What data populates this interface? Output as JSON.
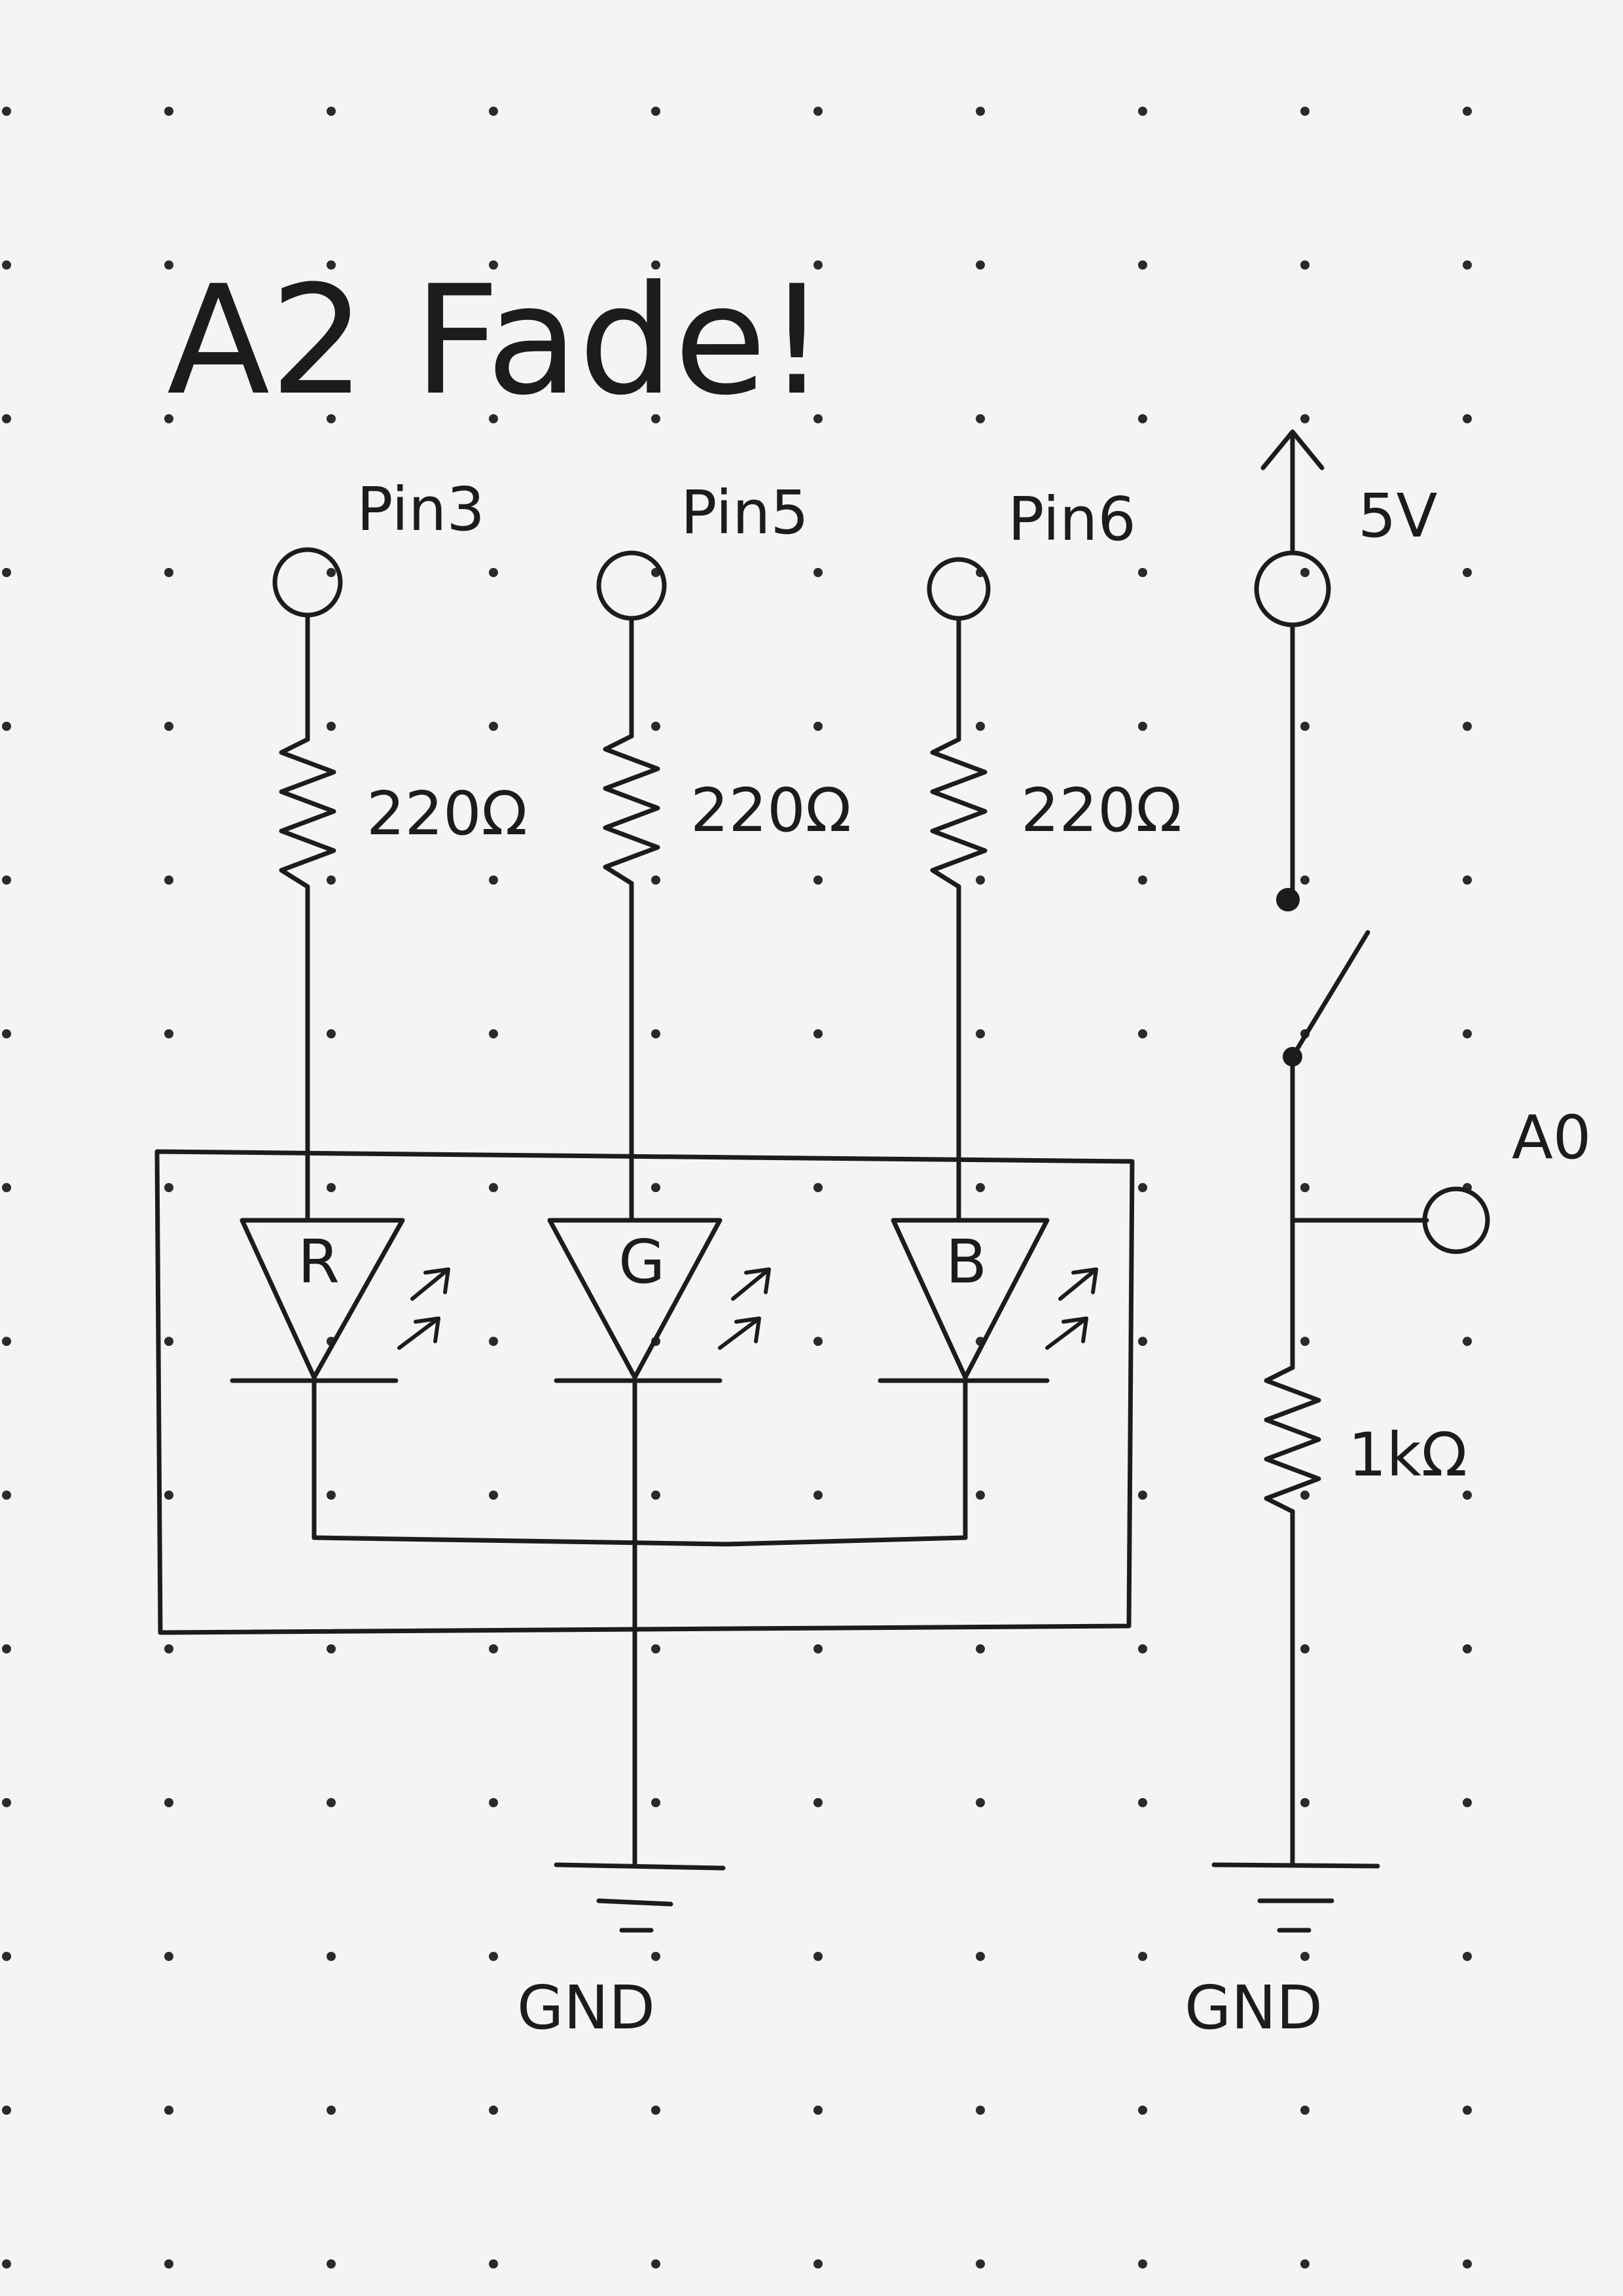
{
  "title": "A2 Fade!",
  "pins": [
    "Pin3",
    "Pin5",
    "Pin6"
  ],
  "resistors": [
    "220Ω",
    "220Ω",
    "220Ω"
  ],
  "leds": [
    "R",
    "G",
    "B"
  ],
  "supply": "5V",
  "analog_pin": "A0",
  "pulldown": "1kΩ",
  "ground_left": "GND",
  "ground_right": "GND"
}
